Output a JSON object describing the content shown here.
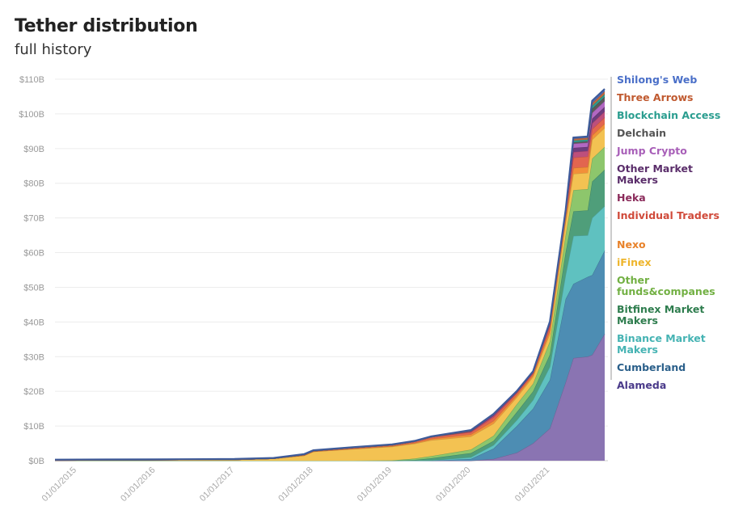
{
  "chart_data": {
    "type": "area",
    "stacked": true,
    "title": "Tether distribution",
    "subtitle": "full history",
    "xlabel": "",
    "ylabel": "",
    "ylim": [
      0,
      110
    ],
    "xlim": [
      "2014-09-22",
      "2021-09-12"
    ],
    "grid": true,
    "legend_placement": "right",
    "yticks": [
      "$0B",
      "$10B",
      "$20B",
      "$30B",
      "$40B",
      "$50B",
      "$60B",
      "$70B",
      "$80B",
      "$90B",
      "$100B",
      "$110B"
    ],
    "xticks": [
      "01/01/2015",
      "01/01/2016",
      "01/01/2017",
      "01/01/2018",
      "01/01/2019",
      "01/01/2020",
      "01/01/2021"
    ],
    "x": [
      "2014-09-22",
      "2016-01-01",
      "2017-01-01",
      "2017-07-01",
      "2017-11-20",
      "2018-01-01",
      "2018-07-01",
      "2019-01-01",
      "2019-04-15",
      "2019-07-01",
      "2020-01-01",
      "2020-04-15",
      "2020-08-01",
      "2020-10-15",
      "2021-01-01",
      "2021-03-15",
      "2021-04-20",
      "2021-06-25",
      "2021-07-16",
      "2021-09-12"
    ],
    "series": [
      {
        "name": "Alameda",
        "color": "#8a74b2",
        "text_color": "#4a3a8a",
        "values": [
          0,
          0,
          0,
          0,
          0,
          0,
          0,
          0,
          0,
          0,
          0,
          0.5,
          2.3,
          5,
          9.3,
          22.6,
          29.6,
          30,
          30.5,
          36.6
        ]
      },
      {
        "name": "Cumberland",
        "color": "#4d8db3",
        "text_color": "#2a5f8a",
        "values": [
          0,
          0,
          0,
          0,
          0,
          0,
          0,
          0,
          0,
          0,
          0.5,
          3,
          7.7,
          10,
          14,
          24,
          21.4,
          23,
          23,
          24
        ]
      },
      {
        "name": "Binance Market Makers",
        "color": "#5fc1c0",
        "text_color": "#45b3b3",
        "values": [
          0,
          0,
          0,
          0,
          0,
          0,
          0,
          0,
          0,
          0.1,
          0.5,
          1,
          1.7,
          2.5,
          3.8,
          7,
          13.8,
          12,
          16.5,
          12.8
        ]
      },
      {
        "name": "Bitfinex Market Makers",
        "color": "#4f9e7a",
        "text_color": "#2e7d4e",
        "values": [
          0,
          0,
          0,
          0,
          0,
          0,
          0,
          0,
          0.2,
          0.6,
          1.2,
          1.2,
          2.3,
          2.5,
          3.5,
          6.5,
          7.1,
          7.2,
          10.5,
          10.5
        ]
      },
      {
        "name": "Other funds&companes",
        "color": "#8dc66c",
        "text_color": "#72b043",
        "values": [
          0,
          0,
          0,
          0,
          0,
          0,
          0,
          0.1,
          0.4,
          0.6,
          1,
          1.5,
          2.3,
          2.2,
          3.8,
          5,
          6.1,
          6.1,
          6.6,
          6.6
        ]
      },
      {
        "name": "iFinex",
        "color": "#f3c252",
        "text_color": "#eeb52c",
        "values": [
          0.1,
          0.2,
          0.3,
          0.6,
          1.5,
          2.6,
          3.3,
          3.9,
          4.3,
          4.6,
          3.8,
          3.5,
          2,
          2,
          2.2,
          3.8,
          4.7,
          4.7,
          5.5,
          5.5
        ]
      },
      {
        "name": "Nexo",
        "color": "#f29039",
        "text_color": "#e8822a",
        "values": [
          0,
          0,
          0,
          0,
          0,
          0,
          0.1,
          0.2,
          0.2,
          0.4,
          0.6,
          0.8,
          0.6,
          0.5,
          1,
          0.8,
          1.7,
          1.7,
          1.2,
          1.2
        ]
      },
      {
        "name": "Individual Traders",
        "color": "#e2654f",
        "text_color": "#d04a3a",
        "values": [
          0,
          0,
          0,
          0,
          0.2,
          0.2,
          0.3,
          0.3,
          0.4,
          0.5,
          0.6,
          1,
          0.6,
          0.5,
          1.2,
          1.3,
          3,
          3,
          1.8,
          1.8
        ]
      },
      {
        "name": "Heka",
        "color": "#bd4f7c",
        "text_color": "#8a2a5a",
        "values": [
          0,
          0,
          0,
          0,
          0,
          0,
          0,
          0,
          0,
          0,
          0.2,
          0.4,
          0.2,
          0.2,
          0.5,
          0.4,
          1.6,
          1.6,
          1.7,
          1.7
        ]
      },
      {
        "name": "Other Market Makers",
        "color": "#6d3d7e",
        "text_color": "#5a2d6a",
        "values": [
          0,
          0,
          0,
          0,
          0,
          0,
          0,
          0,
          0,
          0,
          0.1,
          0.2,
          0.1,
          0.1,
          0.3,
          0.3,
          1.2,
          1.2,
          1.3,
          1.3
        ]
      },
      {
        "name": "Jump Crypto",
        "color": "#b268c2",
        "text_color": "#a85fb8",
        "values": [
          0,
          0,
          0,
          0,
          0,
          0,
          0,
          0,
          0,
          0,
          0.05,
          0.1,
          0.1,
          0.1,
          0.2,
          0.2,
          1.2,
          1.2,
          1.7,
          1.7
        ]
      },
      {
        "name": "Delchain",
        "color": "#5b5b5b",
        "text_color": "#555555",
        "values": [
          0,
          0,
          0,
          0,
          0,
          0,
          0,
          0,
          0,
          0,
          0.05,
          0.1,
          0.05,
          0.05,
          0.1,
          0.1,
          0.4,
          0.4,
          1.2,
          1.2
        ]
      },
      {
        "name": "Blockchain Access",
        "color": "#2f9d8f",
        "text_color": "#2a9d8f",
        "values": [
          0,
          0,
          0,
          0,
          0,
          0,
          0,
          0,
          0,
          0,
          0.02,
          0.1,
          0.05,
          0.05,
          0.05,
          0.1,
          0.5,
          0.5,
          0.8,
          0.8
        ]
      },
      {
        "name": "Three Arrows",
        "color": "#c2683d",
        "text_color": "#c05a30",
        "values": [
          0,
          0,
          0,
          0,
          0,
          0,
          0,
          0,
          0,
          0,
          0.02,
          0.05,
          0.05,
          0.05,
          0.05,
          0.1,
          0.5,
          0.5,
          0.8,
          0.8
        ]
      },
      {
        "name": "Shilong's Web",
        "color": "#4c6fbd",
        "text_color": "#4a6fc8",
        "values": [
          0.2,
          0.2,
          0.2,
          0.2,
          0.2,
          0.2,
          0.2,
          0.2,
          0.2,
          0.2,
          0.2,
          0.05,
          0.05,
          0.05,
          0.1,
          0.1,
          0.4,
          0.4,
          0.7,
          0.7
        ]
      }
    ]
  }
}
